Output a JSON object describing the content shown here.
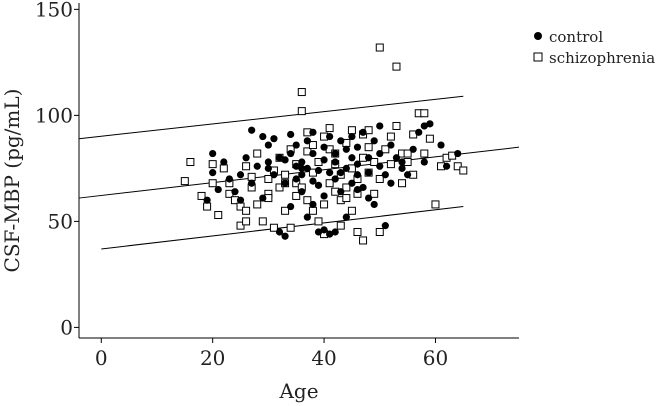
{
  "chart_data": {
    "type": "scatter",
    "xlabel": "Age",
    "ylabel": "CSF-MBP (pg/mL)",
    "xlim": [
      -4,
      75
    ],
    "ylim": [
      -5,
      153
    ],
    "xticks": [
      0,
      20,
      40,
      60
    ],
    "yticks": [
      0,
      50,
      100,
      150
    ],
    "legend_position": "top-right",
    "grid": false,
    "series": [
      {
        "name": "control",
        "marker": "filled-circle",
        "color": "#000000",
        "points": [
          [
            20,
            82
          ],
          [
            20,
            73
          ],
          [
            19,
            60
          ],
          [
            21,
            65
          ],
          [
            22,
            78
          ],
          [
            23,
            70
          ],
          [
            24,
            64
          ],
          [
            25,
            72
          ],
          [
            26,
            80
          ],
          [
            27,
            93
          ],
          [
            27,
            68
          ],
          [
            28,
            76
          ],
          [
            29,
            90
          ],
          [
            29,
            61
          ],
          [
            30,
            86
          ],
          [
            30,
            75
          ],
          [
            31,
            72
          ],
          [
            31,
            89
          ],
          [
            32,
            80
          ],
          [
            32,
            45
          ],
          [
            33,
            43
          ],
          [
            33,
            79
          ],
          [
            33,
            68
          ],
          [
            34,
            91
          ],
          [
            34,
            82
          ],
          [
            35,
            76
          ],
          [
            35,
            70
          ],
          [
            35,
            86
          ],
          [
            36,
            78
          ],
          [
            36,
            64
          ],
          [
            36,
            72
          ],
          [
            37,
            88
          ],
          [
            37,
            75
          ],
          [
            37,
            52
          ],
          [
            38,
            69
          ],
          [
            38,
            82
          ],
          [
            38,
            92
          ],
          [
            39,
            74
          ],
          [
            39,
            67
          ],
          [
            39,
            45
          ],
          [
            40,
            46
          ],
          [
            40,
            79
          ],
          [
            40,
            85
          ],
          [
            40,
            62
          ],
          [
            41,
            44
          ],
          [
            41,
            73
          ],
          [
            41,
            90
          ],
          [
            42,
            82
          ],
          [
            42,
            70
          ],
          [
            42,
            78
          ],
          [
            43,
            88
          ],
          [
            43,
            64
          ],
          [
            43,
            73
          ],
          [
            44,
            75
          ],
          [
            44,
            84
          ],
          [
            44,
            52
          ],
          [
            45,
            80
          ],
          [
            45,
            68
          ],
          [
            45,
            90
          ],
          [
            46,
            77
          ],
          [
            46,
            72
          ],
          [
            46,
            85
          ],
          [
            47,
            92
          ],
          [
            47,
            66
          ],
          [
            48,
            61
          ],
          [
            48,
            80
          ],
          [
            48,
            73
          ],
          [
            49,
            88
          ],
          [
            49,
            58
          ],
          [
            50,
            82
          ],
          [
            50,
            95
          ],
          [
            50,
            76
          ],
          [
            51,
            72
          ],
          [
            52,
            86
          ],
          [
            52,
            68
          ],
          [
            53,
            80
          ],
          [
            54,
            78
          ],
          [
            54,
            75
          ],
          [
            55,
            72
          ],
          [
            56,
            84
          ],
          [
            57,
            92
          ],
          [
            58,
            95
          ],
          [
            58,
            78
          ],
          [
            59,
            96
          ],
          [
            61,
            86
          ],
          [
            64,
            82
          ],
          [
            62,
            76
          ],
          [
            34,
            57
          ],
          [
            36,
            75
          ],
          [
            38,
            58
          ],
          [
            42,
            45
          ],
          [
            46,
            65
          ],
          [
            51,
            48
          ],
          [
            25,
            60
          ],
          [
            30,
            78
          ]
        ]
      },
      {
        "name": "schizophrenia",
        "marker": "open-square",
        "color": "#000000",
        "points": [
          [
            15,
            69
          ],
          [
            16,
            78
          ],
          [
            18,
            62
          ],
          [
            19,
            57
          ],
          [
            20,
            68
          ],
          [
            20,
            77
          ],
          [
            21,
            53
          ],
          [
            22,
            75
          ],
          [
            23,
            63
          ],
          [
            24,
            60
          ],
          [
            25,
            57
          ],
          [
            25,
            48
          ],
          [
            26,
            50
          ],
          [
            26,
            55
          ],
          [
            26,
            76
          ],
          [
            27,
            66
          ],
          [
            27,
            71
          ],
          [
            28,
            58
          ],
          [
            28,
            82
          ],
          [
            29,
            50
          ],
          [
            30,
            63
          ],
          [
            30,
            70
          ],
          [
            31,
            74
          ],
          [
            31,
            47
          ],
          [
            32,
            66
          ],
          [
            32,
            80
          ],
          [
            33,
            72
          ],
          [
            33,
            55
          ],
          [
            34,
            84
          ],
          [
            34,
            47
          ],
          [
            35,
            68
          ],
          [
            35,
            62
          ],
          [
            35,
            77
          ],
          [
            36,
            66
          ],
          [
            36,
            102
          ],
          [
            36,
            111
          ],
          [
            37,
            92
          ],
          [
            37,
            83
          ],
          [
            37,
            60
          ],
          [
            38,
            73
          ],
          [
            38,
            55
          ],
          [
            38,
            86
          ],
          [
            39,
            78
          ],
          [
            39,
            50
          ],
          [
            40,
            90
          ],
          [
            40,
            58
          ],
          [
            40,
            44
          ],
          [
            41,
            94
          ],
          [
            41,
            68
          ],
          [
            41,
            84
          ],
          [
            42,
            64
          ],
          [
            42,
            77
          ],
          [
            42,
            82
          ],
          [
            43,
            72
          ],
          [
            43,
            60
          ],
          [
            43,
            48
          ],
          [
            44,
            87
          ],
          [
            44,
            66
          ],
          [
            45,
            93
          ],
          [
            45,
            55
          ],
          [
            45,
            75
          ],
          [
            46,
            70
          ],
          [
            46,
            63
          ],
          [
            46,
            45
          ],
          [
            47,
            41
          ],
          [
            47,
            91
          ],
          [
            47,
            80
          ],
          [
            48,
            73
          ],
          [
            48,
            93
          ],
          [
            48,
            85
          ],
          [
            49,
            63
          ],
          [
            49,
            78
          ],
          [
            50,
            132
          ],
          [
            50,
            45
          ],
          [
            50,
            70
          ],
          [
            51,
            84
          ],
          [
            52,
            77
          ],
          [
            52,
            90
          ],
          [
            53,
            123
          ],
          [
            53,
            95
          ],
          [
            54,
            68
          ],
          [
            54,
            82
          ],
          [
            55,
            78
          ],
          [
            56,
            91
          ],
          [
            56,
            72
          ],
          [
            57,
            101
          ],
          [
            58,
            101
          ],
          [
            58,
            82
          ],
          [
            59,
            89
          ],
          [
            60,
            58
          ],
          [
            61,
            76
          ],
          [
            62,
            80
          ],
          [
            63,
            81
          ],
          [
            64,
            76
          ],
          [
            65,
            74
          ],
          [
            23,
            68
          ],
          [
            33,
            68
          ],
          [
            44,
            61
          ],
          [
            30,
            61
          ],
          [
            55,
            82
          ]
        ]
      }
    ],
    "reference_lines": [
      {
        "x": [
          -4,
          65
        ],
        "y": [
          89,
          109
        ]
      },
      {
        "x": [
          -4,
          75
        ],
        "y": [
          61,
          85
        ]
      },
      {
        "x": [
          0,
          65
        ],
        "y": [
          37,
          57
        ]
      }
    ]
  }
}
